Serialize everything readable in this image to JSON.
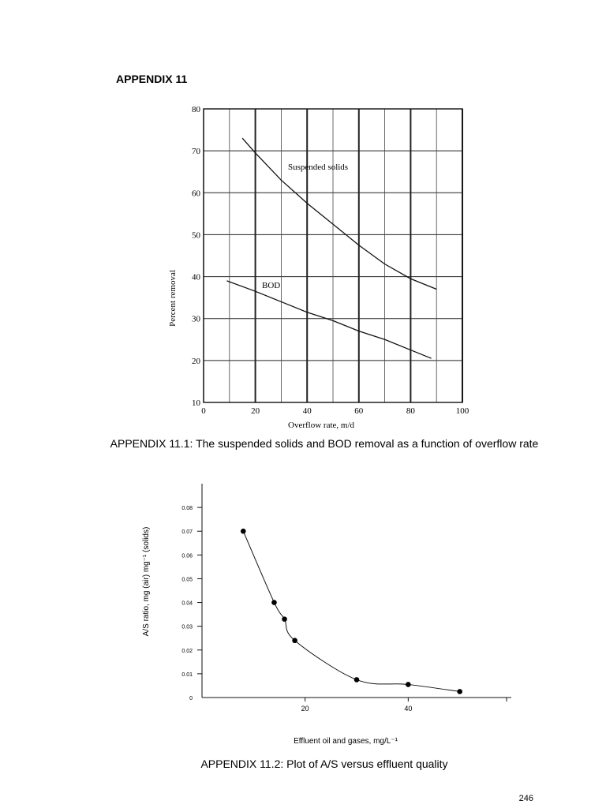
{
  "document": {
    "heading": "APPENDIX 11",
    "caption1": "APPENDIX 11.1: The suspended solids and BOD removal as a function of overflow rate",
    "caption2": "APPENDIX 11.2: Plot of A/S versus effluent quality",
    "page_number": "246"
  },
  "chart_data": [
    {
      "type": "line",
      "xlabel": "Overflow rate, m/d",
      "ylabel": "Percent removal",
      "xlim": [
        0,
        100
      ],
      "ylim": [
        10,
        80
      ],
      "x_ticks": [
        "0",
        "20",
        "40",
        "60",
        "80",
        "100"
      ],
      "y_ticks": [
        "10",
        "20",
        "30",
        "40",
        "50",
        "60",
        "70",
        "80"
      ],
      "grid": true,
      "series": [
        {
          "name": "Suspended solids",
          "x": [
            15,
            20,
            30,
            40,
            50,
            60,
            70,
            80,
            90
          ],
          "y": [
            73,
            69.5,
            63,
            57.5,
            52.5,
            47.5,
            43,
            39.5,
            37
          ]
        },
        {
          "name": "BOD",
          "x": [
            9,
            20,
            30,
            40,
            50,
            60,
            70,
            80,
            88
          ],
          "y": [
            39,
            36.5,
            34,
            31.5,
            29.5,
            27,
            25,
            22.5,
            20.5
          ]
        }
      ]
    },
    {
      "type": "line",
      "xlabel": "Effluent oil and gases, mg/L⁻¹",
      "ylabel": "A/S ratio, mg (air) mg⁻¹ (solids)",
      "xlim": [
        0,
        60
      ],
      "ylim": [
        0,
        0.09
      ],
      "x_ticks": [
        "20",
        "40"
      ],
      "y_ticks": [
        "0",
        "0.01",
        "0.02",
        "0.03",
        "0.04",
        "0.05",
        "0.06",
        "0.07",
        "0.08"
      ],
      "grid": false,
      "markers": true,
      "series": [
        {
          "x": [
            8,
            14,
            16,
            18,
            30,
            40,
            50
          ],
          "y": [
            0.07,
            0.04,
            0.033,
            0.024,
            0.0075,
            0.0055,
            0.0025
          ]
        }
      ]
    }
  ]
}
